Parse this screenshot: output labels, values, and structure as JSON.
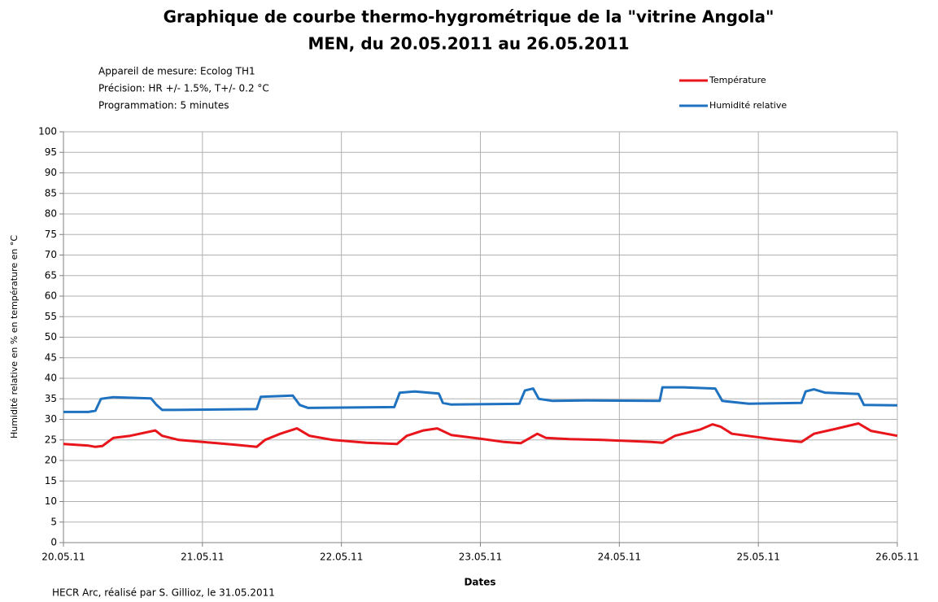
{
  "chart_data": {
    "type": "line",
    "title": "Graphique de courbe thermo-hygrométrique de la \"vitrine Angola\"",
    "subtitle": "MEN, du 20.05.2011 au 26.05.2011",
    "annotations": [
      "Appareil de mesure: Ecolog TH1",
      "Précision: HR +/- 1.5%, T+/- 0.2 °C",
      "Programmation: 5 minutes"
    ],
    "footer": "HECR Arc, réalisé par S. Gillioz, le 31.05.2011",
    "xlabel": "Dates",
    "ylabel": "Humidité relative en % en température en °C",
    "xlim": [
      0,
      6
    ],
    "xticks": [
      {
        "value": 0,
        "label": "20.05.11"
      },
      {
        "value": 1,
        "label": "21.05.11"
      },
      {
        "value": 2,
        "label": "22.05.11"
      },
      {
        "value": 3,
        "label": "23.05.11"
      },
      {
        "value": 4,
        "label": "24.05.11"
      },
      {
        "value": 5,
        "label": "25.05.11"
      },
      {
        "value": 6,
        "label": "26.05.11"
      }
    ],
    "ylim": [
      0,
      100
    ],
    "yticks": [
      0,
      5,
      10,
      15,
      20,
      25,
      30,
      35,
      40,
      45,
      50,
      55,
      60,
      65,
      70,
      75,
      80,
      85,
      90,
      95,
      100
    ],
    "grid": true,
    "legend": "top-right",
    "series": [
      {
        "name": "Température",
        "color": "#e8151b",
        "x": [
          0,
          0.18,
          0.23,
          0.28,
          0.36,
          0.48,
          0.66,
          0.71,
          0.83,
          1.07,
          1.24,
          1.39,
          1.45,
          1.56,
          1.68,
          1.77,
          1.94,
          2.18,
          2.4,
          2.47,
          2.59,
          2.69,
          2.79,
          3.0,
          3.17,
          3.29,
          3.41,
          3.47,
          3.64,
          3.88,
          4.23,
          4.31,
          4.4,
          4.58,
          4.67,
          4.73,
          4.81,
          5.1,
          5.31,
          5.4,
          5.57,
          5.72,
          5.81,
          6
        ],
        "values": [
          24,
          23.6,
          23.3,
          23.5,
          25.5,
          26,
          27.3,
          26,
          25,
          24.3,
          23.8,
          23.3,
          25,
          26.5,
          27.8,
          26,
          25,
          24.3,
          24,
          26,
          27.3,
          27.8,
          26.2,
          25.3,
          24.5,
          24.2,
          26.5,
          25.5,
          25.2,
          25,
          24.5,
          24.3,
          26,
          27.5,
          28.8,
          28.2,
          26.5,
          25.2,
          24.5,
          26.5,
          27.8,
          29,
          27.2,
          26
        ]
      },
      {
        "name": "Humidité relative",
        "color": "#1f72c0",
        "x": [
          0,
          0.18,
          0.23,
          0.27,
          0.36,
          0.63,
          0.67,
          0.71,
          0.8,
          1.39,
          1.42,
          1.65,
          1.7,
          1.76,
          2.38,
          2.42,
          2.53,
          2.7,
          2.73,
          2.79,
          3.28,
          3.32,
          3.38,
          3.42,
          3.52,
          3.76,
          4.29,
          4.31,
          4.46,
          4.69,
          4.74,
          4.93,
          5.31,
          5.34,
          5.4,
          5.48,
          5.72,
          5.76,
          6
        ],
        "values": [
          31.8,
          31.8,
          32.1,
          35,
          35.4,
          35.1,
          33.5,
          32.3,
          32.3,
          32.5,
          35.5,
          35.8,
          33.5,
          32.8,
          33,
          36.5,
          36.8,
          36.3,
          34,
          33.6,
          33.8,
          37,
          37.5,
          35,
          34.5,
          34.6,
          34.5,
          37.8,
          37.8,
          37.5,
          34.5,
          33.8,
          34,
          36.8,
          37.3,
          36.5,
          36.2,
          33.5,
          33.4
        ]
      }
    ]
  }
}
